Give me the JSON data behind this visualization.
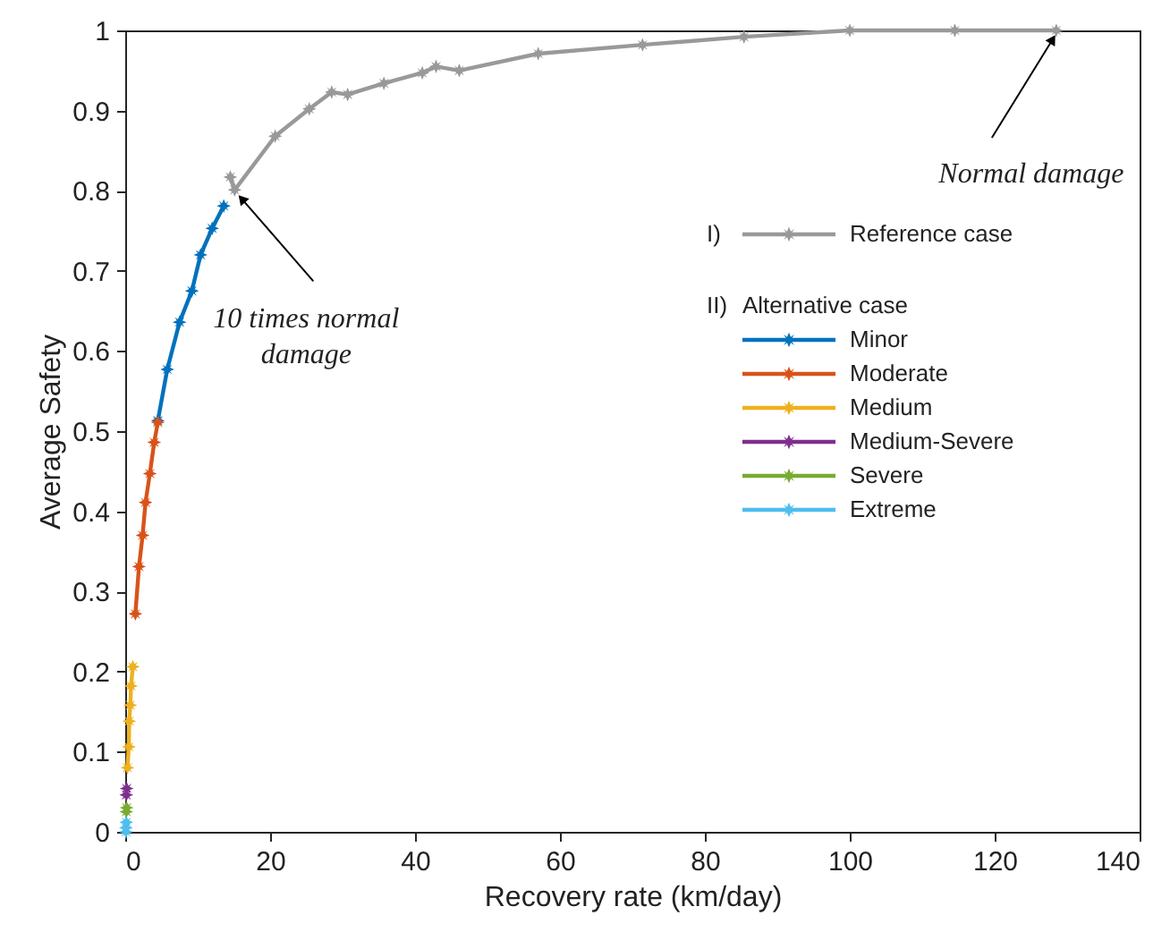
{
  "chart_data": {
    "type": "line",
    "xlabel": "Recovery rate (km/day)",
    "ylabel": "Average Safety",
    "xlim": [
      0,
      140
    ],
    "ylim": [
      0,
      1
    ],
    "xticks": [
      0,
      20,
      40,
      60,
      80,
      100,
      120,
      140
    ],
    "yticks": [
      0,
      0.1,
      0.2,
      0.3,
      0.4,
      0.5,
      0.6,
      0.7,
      0.8,
      0.9,
      1
    ],
    "grid": false,
    "legend": "right",
    "legend_title": "Alternative case",
    "marker": "star",
    "line_style": "solid",
    "annotations": [
      "I)",
      "II)",
      {
        "text": "10 times normal damage",
        "x": 15.1,
        "y": 0.801
      },
      {
        "text": "Normal damage",
        "x": 128.5,
        "y": 1
      }
    ],
    "series": [
      {
        "name": "Reference case",
        "color": "#999999",
        "x": [
          14.5,
          15.1,
          20.7,
          25.4,
          28.5,
          30.7,
          35.7,
          41.0,
          42.9,
          46.1,
          57.0,
          71.4,
          85.4,
          100,
          114.5,
          128.5
        ],
        "values": [
          0.817,
          0.801,
          0.868,
          0.902,
          0.923,
          0.92,
          0.934,
          0.947,
          0.955,
          0.95,
          0.971,
          0.982,
          0.992,
          1,
          1,
          1
        ]
      },
      {
        "name": "Minor",
        "color": "#0072bd",
        "x": [
          4.5,
          5.8,
          7.5,
          9.2,
          10.4,
          12.0,
          13.6
        ],
        "values": [
          0.513,
          0.577,
          0.636,
          0.675,
          0.72,
          0.753,
          0.781
        ]
      },
      {
        "name": "Moderate",
        "color": "#d95319",
        "x": [
          1.4,
          1.9,
          2.4,
          2.8,
          3.4,
          4.0,
          4.5
        ],
        "values": [
          0.272,
          0.331,
          0.37,
          0.411,
          0.447,
          0.486,
          0.511
        ]
      },
      {
        "name": "Medium",
        "color": "#edb120",
        "x": [
          0.3,
          0.5,
          0.55,
          0.7,
          0.8,
          1.05
        ],
        "values": [
          0.08,
          0.106,
          0.138,
          0.158,
          0.182,
          0.206
        ]
      },
      {
        "name": "Medium-Severe",
        "type": "scatter",
        "color": "#7e2f8e",
        "x": [
          0.15,
          0.2
        ],
        "values": [
          0.046,
          0.054
        ]
      },
      {
        "name": "Severe",
        "type": "scatter",
        "color": "#77ac30",
        "x": [
          0.15,
          0.2
        ],
        "values": [
          0.025,
          0.03
        ]
      },
      {
        "name": "Extreme",
        "type": "scatter",
        "color": "#4dbeee",
        "x": [
          0.1,
          0.1,
          0.15
        ],
        "values": [
          0,
          0.005,
          0.012
        ]
      }
    ]
  }
}
